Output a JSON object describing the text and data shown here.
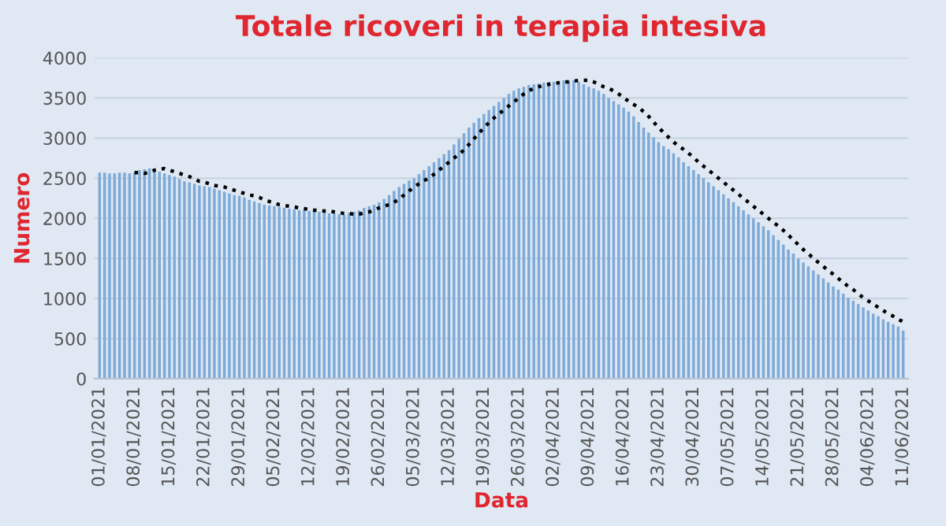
{
  "chart_data": {
    "type": "bar",
    "title": "Totale ricoveri in terapia intesiva",
    "xlabel": "Data",
    "ylabel": "Numero",
    "categories": [
      "01/01/2021",
      null,
      null,
      null,
      null,
      null,
      null,
      "08/01/2021",
      null,
      null,
      null,
      null,
      null,
      null,
      "15/01/2021",
      null,
      null,
      null,
      null,
      null,
      null,
      "22/01/2021",
      null,
      null,
      null,
      null,
      null,
      null,
      "29/01/2021",
      null,
      null,
      null,
      null,
      null,
      null,
      "05/02/2021",
      null,
      null,
      null,
      null,
      null,
      null,
      "12/02/2021",
      null,
      null,
      null,
      null,
      null,
      null,
      "19/02/2021",
      null,
      null,
      null,
      null,
      null,
      null,
      "26/02/2021",
      null,
      null,
      null,
      null,
      null,
      null,
      "05/03/2021",
      null,
      null,
      null,
      null,
      null,
      null,
      "12/03/2021",
      null,
      null,
      null,
      null,
      null,
      null,
      "19/03/2021",
      null,
      null,
      null,
      null,
      null,
      null,
      "26/03/2021",
      null,
      null,
      null,
      null,
      null,
      null,
      "02/04/2021",
      null,
      null,
      null,
      null,
      null,
      null,
      "09/04/2021",
      null,
      null,
      null,
      null,
      null,
      null,
      "16/04/2021",
      null,
      null,
      null,
      null,
      null,
      null,
      "23/04/2021",
      null,
      null,
      null,
      null,
      null,
      null,
      "30/04/2021",
      null,
      null,
      null,
      null,
      null,
      null,
      "07/05/2021",
      null,
      null,
      null,
      null,
      null,
      null,
      "14/05/2021",
      null,
      null,
      null,
      null,
      null,
      null,
      "21/05/2021",
      null,
      null,
      null,
      null,
      null,
      null,
      "28/05/2021",
      null,
      null,
      null,
      null,
      null,
      null,
      "04/06/2021",
      null,
      null,
      null,
      null,
      null,
      null,
      "11/06/2021"
    ],
    "series": [
      {
        "color": "#7eaad8",
        "values": [
          2570,
          2570,
          2560,
          2560,
          2570,
          2570,
          2560,
          2570,
          2600,
          2610,
          2620,
          2600,
          2580,
          2560,
          2540,
          2520,
          2490,
          2460,
          2450,
          2430,
          2410,
          2400,
          2390,
          2370,
          2350,
          2330,
          2310,
          2290,
          2280,
          2260,
          2230,
          2210,
          2190,
          2170,
          2160,
          2150,
          2140,
          2130,
          2120,
          2110,
          2100,
          2100,
          2090,
          2090,
          2080,
          2070,
          2060,
          2060,
          2050,
          2050,
          2070,
          2080,
          2100,
          2130,
          2150,
          2170,
          2200,
          2240,
          2290,
          2340,
          2390,
          2430,
          2470,
          2500,
          2550,
          2600,
          2650,
          2700,
          2750,
          2800,
          2850,
          2920,
          2990,
          3060,
          3130,
          3190,
          3250,
          3300,
          3350,
          3400,
          3450,
          3500,
          3550,
          3590,
          3620,
          3640,
          3660,
          3670,
          3680,
          3690,
          3700,
          3700,
          3710,
          3720,
          3720,
          3720,
          3700,
          3670,
          3640,
          3620,
          3590,
          3550,
          3500,
          3460,
          3420,
          3380,
          3330,
          3270,
          3200,
          3130,
          3070,
          3010,
          2950,
          2900,
          2860,
          2810,
          2760,
          2700,
          2650,
          2600,
          2550,
          2500,
          2450,
          2400,
          2350,
          2300,
          2250,
          2200,
          2150,
          2100,
          2050,
          2000,
          1950,
          1900,
          1850,
          1790,
          1730,
          1670,
          1610,
          1560,
          1500,
          1450,
          1400,
          1350,
          1300,
          1250,
          1200,
          1150,
          1110,
          1060,
          1010,
          970,
          930,
          890,
          850,
          810,
          780,
          740,
          710,
          680,
          650,
          600
        ]
      },
      {
        "type": "line",
        "color": "#000000",
        "line_style": "dotted",
        "marker": "none",
        "values": [
          null,
          null,
          null,
          null,
          null,
          null,
          null,
          2570,
          2570,
          2560,
          2570,
          2600,
          2610,
          2620,
          2600,
          2580,
          2560,
          2540,
          2520,
          2490,
          2460,
          2450,
          2430,
          2410,
          2400,
          2390,
          2370,
          2350,
          2330,
          2310,
          2290,
          2280,
          2260,
          2230,
          2210,
          2190,
          2170,
          2160,
          2150,
          2140,
          2130,
          2120,
          2110,
          2100,
          2100,
          2090,
          2090,
          2080,
          2070,
          2060,
          2060,
          2050,
          2050,
          2070,
          2080,
          2100,
          2130,
          2150,
          2170,
          2200,
          2240,
          2290,
          2340,
          2390,
          2430,
          2470,
          2500,
          2550,
          2600,
          2650,
          2700,
          2750,
          2800,
          2850,
          2920,
          2990,
          3060,
          3130,
          3190,
          3250,
          3300,
          3350,
          3400,
          3450,
          3500,
          3550,
          3590,
          3620,
          3640,
          3660,
          3670,
          3680,
          3690,
          3700,
          3700,
          3710,
          3720,
          3720,
          3720,
          3700,
          3670,
          3640,
          3620,
          3590,
          3550,
          3500,
          3460,
          3420,
          3380,
          3330,
          3270,
          3200,
          3130,
          3070,
          3010,
          2950,
          2900,
          2860,
          2810,
          2760,
          2700,
          2650,
          2600,
          2550,
          2500,
          2450,
          2400,
          2350,
          2300,
          2250,
          2200,
          2150,
          2100,
          2050,
          2000,
          1950,
          1900,
          1850,
          1790,
          1730,
          1670,
          1610,
          1560,
          1500,
          1450,
          1400,
          1350,
          1300,
          1250,
          1200,
          1150,
          1110,
          1060,
          1010,
          970,
          930,
          890,
          850,
          810,
          780,
          740,
          710
        ]
      }
    ],
    "ylim": [
      0,
      4000
    ],
    "yticks": [
      0,
      500,
      1000,
      1500,
      2000,
      2500,
      3000,
      3500,
      4000
    ],
    "grid": "y"
  }
}
